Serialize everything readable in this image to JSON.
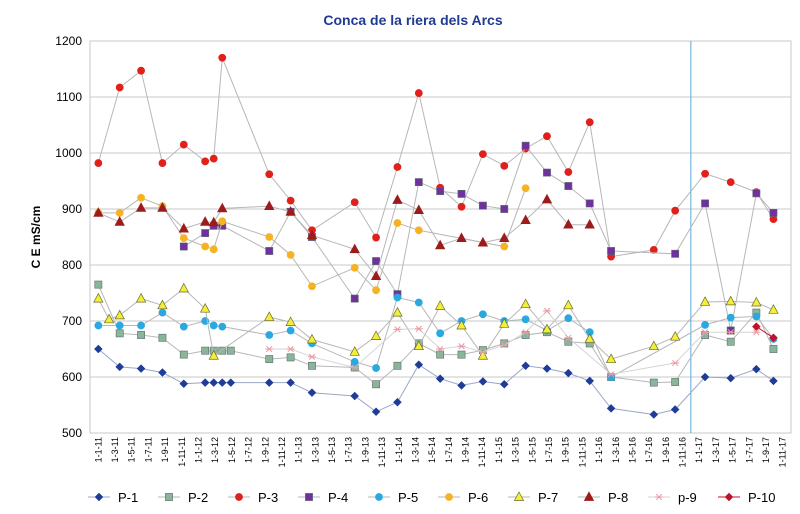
{
  "chart_data": {
    "type": "line",
    "title": "Conca de la riera dels Arcs",
    "xlabel": "",
    "ylabel": "C E    mS/cm",
    "ylim": [
      500,
      1200
    ],
    "yticks": [
      500,
      600,
      700,
      800,
      900,
      1000,
      1100,
      1200
    ],
    "grid": "horizontal",
    "legend_position": "bottom",
    "x": [
      "1-1-11",
      "1-3-11",
      "1-5-11",
      "1-7-11",
      "1-9-11",
      "1-11-11",
      "1-1-12",
      "1-3-12",
      "1-5-12",
      "1-7-12",
      "1-9-12",
      "1-11-12",
      "1-1-13",
      "1-3-13",
      "1-5-13",
      "1-7-13",
      "1-9-13",
      "1-11-13",
      "1-1-14",
      "1-3-14",
      "1-5-14",
      "1-7-14",
      "1-9-14",
      "1-11-14",
      "1-1-15",
      "1-3-15",
      "1-5-15",
      "1-7-15",
      "1-9-15",
      "1-11-15",
      "1-1-16",
      "1-3-16",
      "1-5-16",
      "1-7-16",
      "1-9-16",
      "1-11-16",
      "1-1-17",
      "1-3-17",
      "1-5-17",
      "1-7-17",
      "1-9-17",
      "1-11-17"
    ],
    "reference_line_x": 36,
    "series": [
      {
        "name": "P-1",
        "color": "#1f3c99",
        "marker": "diamond",
        "line": "#9aa7c7",
        "points": [
          [
            0,
            650
          ],
          [
            0.5,
            618
          ],
          [
            1,
            615
          ],
          [
            1.5,
            608
          ],
          [
            2,
            588
          ],
          [
            2.5,
            590
          ],
          [
            2.7,
            590
          ],
          [
            2.9,
            590
          ],
          [
            3.1,
            590
          ],
          [
            4,
            590
          ],
          [
            4.5,
            590
          ],
          [
            5,
            572
          ],
          [
            6,
            566
          ],
          [
            6.5,
            538
          ],
          [
            7,
            555
          ],
          [
            7.5,
            622
          ],
          [
            8,
            597
          ],
          [
            8.5,
            585
          ],
          [
            9,
            592
          ],
          [
            9.5,
            587
          ],
          [
            10,
            620
          ],
          [
            10.5,
            615
          ],
          [
            11,
            607
          ],
          [
            11.5,
            593
          ],
          [
            12,
            544
          ],
          [
            13,
            533
          ],
          [
            13.5,
            542
          ],
          [
            14.2,
            600
          ],
          [
            14.8,
            598
          ],
          [
            15.4,
            614
          ],
          [
            15.8,
            593
          ]
        ]
      },
      {
        "name": "P-2",
        "color": "#8ab59a",
        "marker": "square",
        "line": "#b7b7b7",
        "points": [
          [
            0,
            765
          ],
          [
            0.5,
            678
          ],
          [
            1,
            675
          ],
          [
            1.5,
            670
          ],
          [
            2,
            640
          ],
          [
            2.5,
            647
          ],
          [
            2.7,
            647
          ],
          [
            2.9,
            647
          ],
          [
            3.1,
            647
          ],
          [
            4,
            632
          ],
          [
            4.5,
            635
          ],
          [
            5,
            620
          ],
          [
            6,
            617
          ],
          [
            6.5,
            587
          ],
          [
            7,
            620
          ],
          [
            7.5,
            660
          ],
          [
            8,
            640
          ],
          [
            8.5,
            640
          ],
          [
            9,
            648
          ],
          [
            9.5,
            660
          ],
          [
            10,
            675
          ],
          [
            10.5,
            680
          ],
          [
            11,
            663
          ],
          [
            11.5,
            660
          ],
          [
            12,
            600
          ],
          [
            13,
            590
          ],
          [
            13.5,
            591
          ],
          [
            14.2,
            675
          ],
          [
            14.8,
            663
          ],
          [
            15.4,
            715
          ],
          [
            15.8,
            650
          ]
        ]
      },
      {
        "name": "P-3",
        "color": "#e0201b",
        "marker": "circle",
        "line": "#b7b7b7",
        "points": [
          [
            0,
            982
          ],
          [
            0.5,
            1117
          ],
          [
            1,
            1147
          ],
          [
            1.5,
            982
          ],
          [
            2,
            1015
          ],
          [
            2.5,
            985
          ],
          [
            2.7,
            990
          ],
          [
            2.9,
            1170
          ],
          [
            4,
            962
          ],
          [
            4.5,
            915
          ],
          [
            5,
            862
          ],
          [
            6,
            912
          ],
          [
            6.5,
            849
          ],
          [
            7,
            975
          ],
          [
            7.5,
            1107
          ],
          [
            8,
            938
          ],
          [
            8.5,
            904
          ],
          [
            9,
            998
          ],
          [
            9.5,
            977
          ],
          [
            10,
            1008
          ],
          [
            10.5,
            1030
          ],
          [
            11,
            966
          ],
          [
            11.5,
            1055
          ],
          [
            12,
            815
          ],
          [
            13,
            827
          ],
          [
            13.5,
            897
          ],
          [
            14.2,
            963
          ],
          [
            14.8,
            948
          ],
          [
            15.4,
            930
          ],
          [
            15.8,
            882
          ]
        ]
      },
      {
        "name": "P-4",
        "color": "#7030a0",
        "marker": "square",
        "line": "#b7b7b7",
        "points": [
          [
            2,
            833
          ],
          [
            2.5,
            857
          ],
          [
            2.7,
            870
          ],
          [
            2.9,
            870
          ],
          [
            4,
            825
          ],
          [
            4.5,
            895
          ],
          [
            5,
            850
          ],
          [
            6,
            740
          ],
          [
            6.5,
            807
          ],
          [
            7,
            748
          ],
          [
            7.5,
            948
          ],
          [
            8,
            932
          ],
          [
            8.5,
            927
          ],
          [
            9,
            906
          ],
          [
            9.5,
            900
          ],
          [
            10,
            1013
          ],
          [
            10.5,
            965
          ],
          [
            11,
            941
          ],
          [
            11.5,
            910
          ],
          [
            12,
            825
          ],
          [
            13.5,
            820
          ],
          [
            14.2,
            910
          ],
          [
            14.8,
            683
          ],
          [
            15.4,
            928
          ],
          [
            15.8,
            893
          ]
        ]
      },
      {
        "name": "P-5",
        "color": "#2aa8e0",
        "marker": "circle",
        "line": "#b7b7b7",
        "points": [
          [
            0,
            692
          ],
          [
            0.5,
            692
          ],
          [
            1,
            692
          ],
          [
            1.5,
            715
          ],
          [
            2,
            690
          ],
          [
            2.5,
            700
          ],
          [
            2.7,
            692
          ],
          [
            2.9,
            690
          ],
          [
            4,
            675
          ],
          [
            4.5,
            683
          ],
          [
            5,
            660
          ],
          [
            6,
            627
          ],
          [
            6.5,
            616
          ],
          [
            7,
            742
          ],
          [
            7.5,
            733
          ],
          [
            8,
            678
          ],
          [
            8.5,
            700
          ],
          [
            9,
            712
          ],
          [
            9.5,
            700
          ],
          [
            10,
            703
          ],
          [
            10.5,
            683
          ],
          [
            11,
            705
          ],
          [
            11.5,
            680
          ],
          [
            12,
            600
          ],
          [
            14.2,
            693
          ],
          [
            14.8,
            706
          ],
          [
            15.4,
            708
          ],
          [
            15.8,
            668
          ]
        ]
      },
      {
        "name": "P-6",
        "color": "#f5b323",
        "marker": "circle",
        "line": "#b7b7b7",
        "points": [
          [
            0,
            893
          ],
          [
            0.5,
            893
          ],
          [
            1,
            920
          ],
          [
            1.5,
            905
          ],
          [
            2,
            848
          ],
          [
            2.5,
            833
          ],
          [
            2.7,
            828
          ],
          [
            2.9,
            878
          ],
          [
            4,
            850
          ],
          [
            4.5,
            818
          ],
          [
            5,
            762
          ],
          [
            6,
            795
          ],
          [
            6.5,
            755
          ],
          [
            7,
            875
          ],
          [
            7.5,
            862
          ],
          [
            9.5,
            833
          ],
          [
            10,
            937
          ]
        ]
      },
      {
        "name": "P-7",
        "color": "#f2ee3a",
        "marker": "triangle",
        "line": "#b7b7b7",
        "points": [
          [
            0,
            740
          ],
          [
            0.25,
            703
          ],
          [
            0.5,
            710
          ],
          [
            1,
            740
          ],
          [
            1.5,
            728
          ],
          [
            2,
            758
          ],
          [
            2.5,
            722
          ],
          [
            2.7,
            638
          ],
          [
            4,
            707
          ],
          [
            4.5,
            698
          ],
          [
            5,
            667
          ],
          [
            6,
            645
          ],
          [
            6.5,
            673
          ],
          [
            7,
            715
          ],
          [
            7.5,
            655
          ],
          [
            8,
            727
          ],
          [
            8.5,
            692
          ],
          [
            9,
            638
          ],
          [
            9.5,
            695
          ],
          [
            10,
            730
          ],
          [
            10.5,
            685
          ],
          [
            11,
            728
          ],
          [
            11.5,
            668
          ],
          [
            12,
            632
          ],
          [
            13,
            655
          ],
          [
            13.5,
            672
          ],
          [
            14.2,
            734
          ],
          [
            14.8,
            735
          ],
          [
            15.4,
            733
          ],
          [
            15.8,
            720
          ]
        ]
      },
      {
        "name": "P-8",
        "color": "#9c1c1c",
        "marker": "triangle",
        "line": "#b7b7b7",
        "points": [
          [
            0,
            893
          ],
          [
            0.5,
            877
          ],
          [
            1,
            902
          ],
          [
            1.5,
            902
          ],
          [
            2,
            865
          ],
          [
            2.5,
            877
          ],
          [
            2.7,
            876
          ],
          [
            2.9,
            901
          ],
          [
            4,
            905
          ],
          [
            4.5,
            895
          ],
          [
            5,
            853
          ],
          [
            6,
            828
          ],
          [
            6.5,
            780
          ],
          [
            7,
            916
          ],
          [
            7.5,
            898
          ],
          [
            8,
            835
          ],
          [
            8.5,
            848
          ],
          [
            9,
            840
          ],
          [
            9.5,
            848
          ],
          [
            10,
            880
          ],
          [
            10.5,
            917
          ],
          [
            11,
            872
          ],
          [
            11.5,
            872
          ]
        ]
      },
      {
        "name": "p-9",
        "color": "#e89aa6",
        "marker": "star",
        "line": "#d4d4d4",
        "points": [
          [
            4,
            650
          ],
          [
            4.5,
            650
          ],
          [
            5,
            636
          ],
          [
            6,
            617
          ],
          [
            7,
            685
          ],
          [
            7.5,
            686
          ],
          [
            8,
            650
          ],
          [
            8.5,
            655
          ],
          [
            9,
            645
          ],
          [
            9.5,
            657
          ],
          [
            10,
            680
          ],
          [
            10.5,
            718
          ],
          [
            11,
            670
          ],
          [
            12,
            605
          ],
          [
            13.5,
            625
          ],
          [
            14.2,
            680
          ],
          [
            14.8,
            680
          ],
          [
            15.4,
            680
          ]
        ]
      },
      {
        "name": "P-10",
        "color": "#c0102a",
        "marker": "diamond",
        "line": "#c0102a",
        "points": [
          [
            15.4,
            690
          ],
          [
            15.8,
            670
          ]
        ]
      }
    ]
  }
}
